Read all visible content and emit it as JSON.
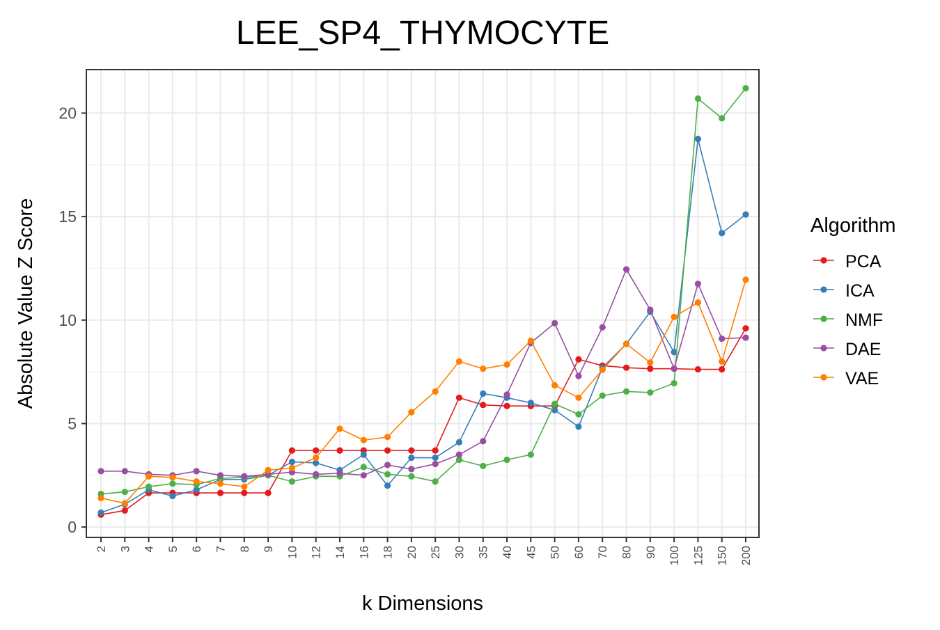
{
  "chart_data": {
    "type": "line",
    "title": "LEE_SP4_THYMOCYTE",
    "xlabel": "k Dimensions",
    "ylabel": "Absolute Value Z Score",
    "categories": [
      "2",
      "3",
      "4",
      "5",
      "6",
      "7",
      "8",
      "9",
      "10",
      "12",
      "14",
      "16",
      "18",
      "20",
      "25",
      "30",
      "35",
      "40",
      "45",
      "50",
      "60",
      "70",
      "80",
      "90",
      "100",
      "125",
      "150",
      "200"
    ],
    "ylim": [
      -0.5,
      22.1
    ],
    "yticks": [
      0,
      5,
      10,
      15,
      20
    ],
    "grid": true,
    "legend": {
      "title": "Algorithm",
      "placement": "right"
    },
    "series": [
      {
        "name": "PCA",
        "color": "#e41a1c",
        "values": [
          0.6,
          0.8,
          1.65,
          1.65,
          1.65,
          1.65,
          1.65,
          1.65,
          3.7,
          3.7,
          3.7,
          3.7,
          3.7,
          3.7,
          3.7,
          6.25,
          5.9,
          5.85,
          5.85,
          5.85,
          8.1,
          7.8,
          7.7,
          7.65,
          7.65,
          7.62,
          7.62,
          9.6
        ]
      },
      {
        "name": "ICA",
        "color": "#377eb8",
        "values": [
          0.7,
          1.1,
          1.8,
          1.5,
          1.8,
          2.3,
          2.3,
          2.5,
          3.15,
          3.1,
          2.75,
          3.5,
          2.0,
          3.35,
          3.35,
          4.1,
          6.45,
          6.25,
          6.0,
          5.65,
          4.85,
          7.7,
          8.85,
          10.4,
          8.45,
          18.75,
          14.2,
          15.1
        ]
      },
      {
        "name": "NMF",
        "color": "#4daf4a",
        "values": [
          1.6,
          1.7,
          1.95,
          2.1,
          2.05,
          2.35,
          2.4,
          2.5,
          2.2,
          2.45,
          2.45,
          2.9,
          2.55,
          2.45,
          2.2,
          3.25,
          2.95,
          3.25,
          3.5,
          5.95,
          5.45,
          6.35,
          6.55,
          6.5,
          6.95,
          20.7,
          19.75,
          21.2
        ]
      },
      {
        "name": "DAE",
        "color": "#984ea3",
        "values": [
          2.7,
          2.7,
          2.55,
          2.5,
          2.7,
          2.5,
          2.45,
          2.55,
          2.65,
          2.55,
          2.6,
          2.5,
          3.0,
          2.8,
          3.05,
          3.5,
          4.15,
          6.4,
          8.9,
          9.85,
          7.3,
          9.65,
          12.45,
          10.5,
          7.65,
          11.75,
          9.1,
          9.15
        ]
      },
      {
        "name": "VAE",
        "color": "#ff7f00",
        "values": [
          1.4,
          1.15,
          2.45,
          2.4,
          2.2,
          2.1,
          1.95,
          2.75,
          2.85,
          3.35,
          4.75,
          4.2,
          4.35,
          5.55,
          6.55,
          8.0,
          7.65,
          7.85,
          9.0,
          6.85,
          6.25,
          7.6,
          8.85,
          7.95,
          10.15,
          10.85,
          8.0,
          11.95
        ]
      }
    ]
  }
}
